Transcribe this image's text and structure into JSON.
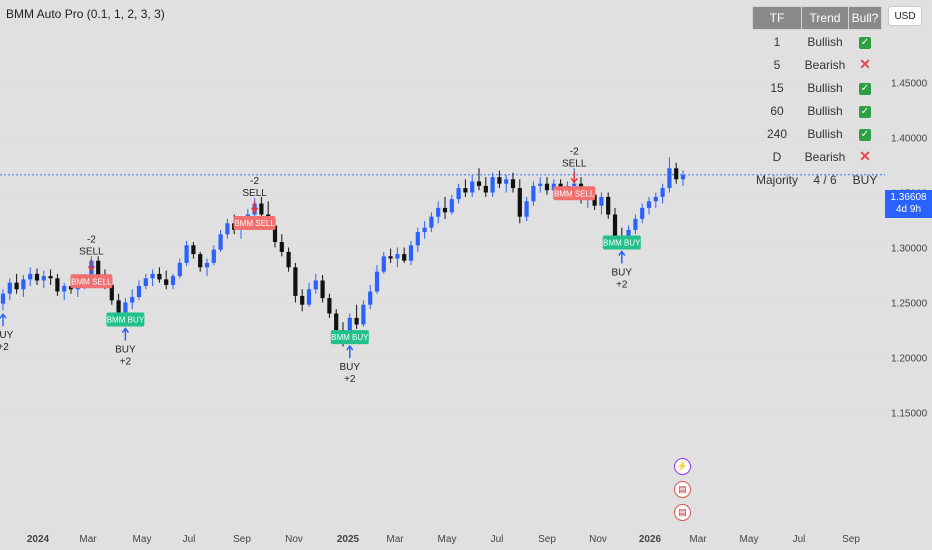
{
  "title": "BMM Auto Pro (0.1, 1, 2, 3, 3)",
  "currency": "USD",
  "price": {
    "value": "1.36608",
    "countdown": "4d 9h"
  },
  "table": {
    "headers": [
      "TF",
      "Trend",
      "Bull?"
    ],
    "rows": [
      {
        "tf": "1",
        "trend": "Bullish",
        "bull": true
      },
      {
        "tf": "5",
        "trend": "Bearish",
        "bull": false
      },
      {
        "tf": "15",
        "trend": "Bullish",
        "bull": true
      },
      {
        "tf": "60",
        "trend": "Bullish",
        "bull": true
      },
      {
        "tf": "240",
        "trend": "Bullish",
        "bull": true
      },
      {
        "tf": "D",
        "trend": "Bearish",
        "bull": false
      }
    ],
    "majority": {
      "label": "Majority",
      "value": "4 / 6",
      "signal": "BUY"
    }
  },
  "icons": [
    "lightning-icon",
    "us-flag-icon",
    "us-flag-icon"
  ],
  "colors": {
    "up": "#2962ff",
    "down": "#111111",
    "sell": "#f07070",
    "buy": "#22c08a",
    "bull_text": "#2ea043",
    "bear_text": "#e5484d"
  },
  "chart_data": {
    "type": "candlestick",
    "price_ticks": [
      "1.45000",
      "1.40000",
      "1.35000",
      "1.30000",
      "1.25000",
      "1.20000",
      "1.15000"
    ],
    "time_ticks": [
      "2024",
      "Mar",
      "May",
      "Jul",
      "Sep",
      "Nov",
      "2025",
      "Mar",
      "May",
      "Jul",
      "Sep",
      "Nov",
      "2026",
      "Mar",
      "May",
      "Jul",
      "Sep"
    ],
    "ylim": [
      1.1,
      1.495
    ],
    "last_price": 1.36608,
    "series": {
      "name": "",
      "ohlc": [
        [
          0,
          1.249,
          1.262,
          1.243,
          1.258
        ],
        [
          1,
          1.258,
          1.272,
          1.252,
          1.268
        ],
        [
          2,
          1.268,
          1.276,
          1.258,
          1.262
        ],
        [
          3,
          1.262,
          1.275,
          1.255,
          1.271
        ],
        [
          4,
          1.271,
          1.282,
          1.265,
          1.276
        ],
        [
          5,
          1.276,
          1.281,
          1.266,
          1.27
        ],
        [
          6,
          1.27,
          1.279,
          1.263,
          1.274
        ],
        [
          7,
          1.274,
          1.28,
          1.266,
          1.272
        ],
        [
          8,
          1.272,
          1.276,
          1.256,
          1.26
        ],
        [
          9,
          1.26,
          1.268,
          1.252,
          1.265
        ],
        [
          10,
          1.265,
          1.272,
          1.258,
          1.262
        ],
        [
          11,
          1.262,
          1.27,
          1.255,
          1.266
        ],
        [
          12,
          1.266,
          1.276,
          1.262,
          1.272
        ],
        [
          13,
          1.272,
          1.292,
          1.27,
          1.288
        ],
        [
          14,
          1.288,
          1.292,
          1.27,
          1.274
        ],
        [
          15,
          1.274,
          1.28,
          1.262,
          1.266
        ],
        [
          16,
          1.266,
          1.272,
          1.248,
          1.252
        ],
        [
          17,
          1.252,
          1.258,
          1.238,
          1.241
        ],
        [
          18,
          1.241,
          1.254,
          1.23,
          1.25
        ],
        [
          19,
          1.25,
          1.262,
          1.244,
          1.255
        ],
        [
          20,
          1.255,
          1.27,
          1.252,
          1.265
        ],
        [
          21,
          1.265,
          1.276,
          1.262,
          1.272
        ],
        [
          22,
          1.272,
          1.28,
          1.265,
          1.276
        ],
        [
          23,
          1.276,
          1.282,
          1.268,
          1.271
        ],
        [
          24,
          1.271,
          1.279,
          1.262,
          1.266
        ],
        [
          25,
          1.266,
          1.276,
          1.262,
          1.274
        ],
        [
          26,
          1.274,
          1.29,
          1.272,
          1.286
        ],
        [
          27,
          1.286,
          1.306,
          1.283,
          1.302
        ],
        [
          28,
          1.302,
          1.305,
          1.29,
          1.294
        ],
        [
          29,
          1.294,
          1.296,
          1.278,
          1.282
        ],
        [
          30,
          1.282,
          1.29,
          1.274,
          1.286
        ],
        [
          31,
          1.286,
          1.302,
          1.284,
          1.298
        ],
        [
          32,
          1.298,
          1.316,
          1.296,
          1.312
        ],
        [
          33,
          1.312,
          1.326,
          1.308,
          1.322
        ],
        [
          34,
          1.322,
          1.33,
          1.312,
          1.316
        ],
        [
          35,
          1.316,
          1.324,
          1.308,
          1.32
        ],
        [
          36,
          1.32,
          1.335,
          1.318,
          1.33
        ],
        [
          37,
          1.33,
          1.345,
          1.326,
          1.34
        ],
        [
          38,
          1.34,
          1.346,
          1.326,
          1.33
        ],
        [
          39,
          1.33,
          1.342,
          1.316,
          1.32
        ],
        [
          40,
          1.32,
          1.322,
          1.3,
          1.305
        ],
        [
          41,
          1.305,
          1.312,
          1.292,
          1.296
        ],
        [
          42,
          1.296,
          1.3,
          1.278,
          1.282
        ],
        [
          43,
          1.282,
          1.286,
          1.25,
          1.256
        ],
        [
          44,
          1.256,
          1.262,
          1.242,
          1.248
        ],
        [
          45,
          1.248,
          1.268,
          1.246,
          1.262
        ],
        [
          46,
          1.262,
          1.276,
          1.258,
          1.27
        ],
        [
          47,
          1.27,
          1.275,
          1.25,
          1.254
        ],
        [
          48,
          1.254,
          1.258,
          1.236,
          1.24
        ],
        [
          49,
          1.24,
          1.244,
          1.22,
          1.225
        ],
        [
          50,
          1.225,
          1.232,
          1.21,
          1.216
        ],
        [
          51,
          1.216,
          1.24,
          1.214,
          1.236
        ],
        [
          52,
          1.236,
          1.248,
          1.226,
          1.23
        ],
        [
          53,
          1.23,
          1.252,
          1.228,
          1.248
        ],
        [
          54,
          1.248,
          1.266,
          1.244,
          1.26
        ],
        [
          55,
          1.26,
          1.284,
          1.258,
          1.278
        ],
        [
          56,
          1.278,
          1.296,
          1.276,
          1.292
        ],
        [
          57,
          1.292,
          1.299,
          1.286,
          1.29
        ],
        [
          58,
          1.29,
          1.3,
          1.282,
          1.294
        ],
        [
          59,
          1.294,
          1.3,
          1.286,
          1.288
        ],
        [
          60,
          1.288,
          1.306,
          1.284,
          1.302
        ],
        [
          61,
          1.302,
          1.318,
          1.296,
          1.314
        ],
        [
          62,
          1.314,
          1.324,
          1.308,
          1.318
        ],
        [
          63,
          1.318,
          1.332,
          1.314,
          1.328
        ],
        [
          64,
          1.328,
          1.342,
          1.322,
          1.336
        ],
        [
          65,
          1.336,
          1.346,
          1.326,
          1.332
        ],
        [
          66,
          1.332,
          1.348,
          1.33,
          1.344
        ],
        [
          67,
          1.344,
          1.358,
          1.34,
          1.354
        ],
        [
          68,
          1.354,
          1.362,
          1.346,
          1.35
        ],
        [
          69,
          1.35,
          1.366,
          1.346,
          1.36
        ],
        [
          70,
          1.36,
          1.372,
          1.352,
          1.356
        ],
        [
          71,
          1.356,
          1.364,
          1.346,
          1.35
        ],
        [
          72,
          1.35,
          1.368,
          1.346,
          1.364
        ],
        [
          73,
          1.364,
          1.37,
          1.354,
          1.358
        ],
        [
          74,
          1.358,
          1.366,
          1.35,
          1.362
        ],
        [
          75,
          1.362,
          1.368,
          1.35,
          1.354
        ],
        [
          76,
          1.354,
          1.362,
          1.322,
          1.328
        ],
        [
          77,
          1.328,
          1.346,
          1.324,
          1.342
        ],
        [
          78,
          1.342,
          1.36,
          1.338,
          1.356
        ],
        [
          79,
          1.356,
          1.364,
          1.35,
          1.358
        ],
        [
          80,
          1.358,
          1.364,
          1.348,
          1.352
        ],
        [
          81,
          1.352,
          1.362,
          1.346,
          1.358
        ],
        [
          82,
          1.358,
          1.362,
          1.348,
          1.35
        ],
        [
          83,
          1.35,
          1.36,
          1.344,
          1.356
        ],
        [
          84,
          1.356,
          1.372,
          1.352,
          1.358
        ],
        [
          85,
          1.358,
          1.364,
          1.34,
          1.344
        ],
        [
          86,
          1.344,
          1.352,
          1.336,
          1.348
        ],
        [
          87,
          1.348,
          1.354,
          1.334,
          1.338
        ],
        [
          88,
          1.338,
          1.35,
          1.33,
          1.346
        ],
        [
          89,
          1.346,
          1.35,
          1.326,
          1.33
        ],
        [
          90,
          1.33,
          1.336,
          1.304,
          1.31
        ],
        [
          91,
          1.31,
          1.318,
          1.3,
          1.306
        ],
        [
          92,
          1.306,
          1.32,
          1.302,
          1.316
        ],
        [
          93,
          1.316,
          1.33,
          1.312,
          1.326
        ],
        [
          94,
          1.326,
          1.34,
          1.322,
          1.336
        ],
        [
          95,
          1.336,
          1.346,
          1.33,
          1.342
        ],
        [
          96,
          1.342,
          1.35,
          1.336,
          1.346
        ],
        [
          97,
          1.346,
          1.358,
          1.34,
          1.354
        ],
        [
          98,
          1.354,
          1.382,
          1.35,
          1.372
        ],
        [
          99,
          1.372,
          1.377,
          1.358,
          1.362
        ],
        [
          100,
          1.362,
          1.37,
          1.356,
          1.366
        ]
      ]
    },
    "signals": [
      {
        "type": "BUY",
        "count": "+2",
        "i": 0
      },
      {
        "type": "SELL",
        "label": "BMM SELL",
        "count": "-2",
        "i": 13
      },
      {
        "type": "BUY",
        "label": "BMM BUY",
        "count": "+2",
        "i": 18
      },
      {
        "type": "SELL",
        "label": "BMM SELL",
        "count": "-2",
        "i": 37
      },
      {
        "type": "BUY",
        "label": "BMM BUY",
        "count": "+2",
        "i": 51
      },
      {
        "type": "SELL",
        "label": "BMM SELL",
        "count": "-2",
        "i": 84
      },
      {
        "type": "BUY",
        "label": "BMM BUY",
        "count": "+2",
        "i": 91
      }
    ]
  }
}
